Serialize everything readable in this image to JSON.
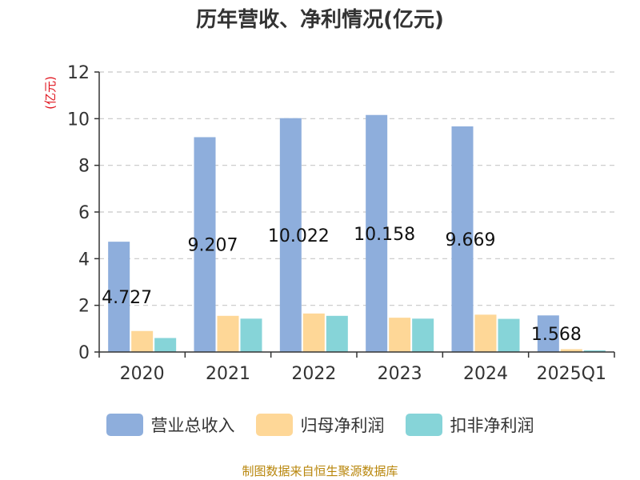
{
  "chart_data": {
    "type": "bar",
    "title": "历年营收、净利情况(亿元)",
    "ylabel": "(亿元)",
    "categories": [
      "2020",
      "2021",
      "2022",
      "2023",
      "2024",
      "2025Q1"
    ],
    "ylim": [
      0,
      12
    ],
    "yticks": [
      0,
      2,
      4,
      6,
      8,
      10,
      12
    ],
    "grid": true,
    "legend_position": "bottom",
    "series": [
      {
        "name": "营业总收入",
        "color": "#8eaedc",
        "values": [
          4.727,
          9.207,
          10.022,
          10.158,
          9.669,
          1.568
        ]
      },
      {
        "name": "归母净利润",
        "color": "#fed797",
        "values": [
          0.9,
          1.55,
          1.65,
          1.47,
          1.6,
          0.12
        ]
      },
      {
        "name": "扣非净利润",
        "color": "#86d4d8",
        "values": [
          0.6,
          1.43,
          1.55,
          1.43,
          1.42,
          0.07
        ]
      }
    ],
    "data_labels": [
      "4.727",
      "9.207",
      "10.022",
      "10.158",
      "9.669",
      "1.568"
    ]
  },
  "footer": "制图数据来自恒生聚源数据库"
}
